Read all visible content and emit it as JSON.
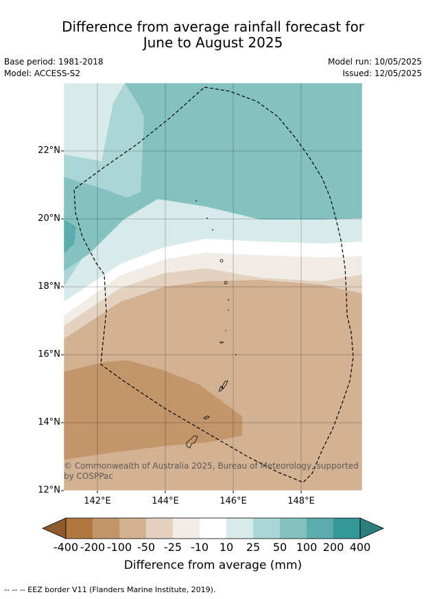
{
  "title_line1": "Difference from average rainfall forecast for",
  "title_line2": "June to August 2025",
  "base_period": "Base period: 1981-2018",
  "model": "Model: ACCESS-S2",
  "model_run": "Model run: 10/05/2025",
  "issued": "Issued: 12/05/2025",
  "copyright_line1": "© Commonwealth of Australia 2025, Bureau of Meteorology, supported",
  "copyright_line2": "by COSPPac",
  "y_ticks": [
    "22°N",
    "20°N",
    "18°N",
    "16°N",
    "14°N",
    "12°N"
  ],
  "x_ticks": [
    "142°E",
    "144°E",
    "146°E",
    "148°E"
  ],
  "colorbar": {
    "labels": [
      "-400",
      "-200",
      "-100",
      "-50",
      "-25",
      "-10",
      "10",
      "25",
      "50",
      "100",
      "200",
      "400"
    ],
    "colors": [
      "#8f5b2e",
      "#b07840",
      "#c2966a",
      "#d3b193",
      "#e4d1c0",
      "#f1ece6",
      "#ffffff",
      "#d8ebea",
      "#acd6d5",
      "#84c1c0",
      "#5bacab",
      "#339896",
      "#2a7f7d"
    ],
    "title": "Difference from average (mm)"
  },
  "footer": "--  --  -- EEZ border V11 (Flanders Marine Institute, 2019)."
}
